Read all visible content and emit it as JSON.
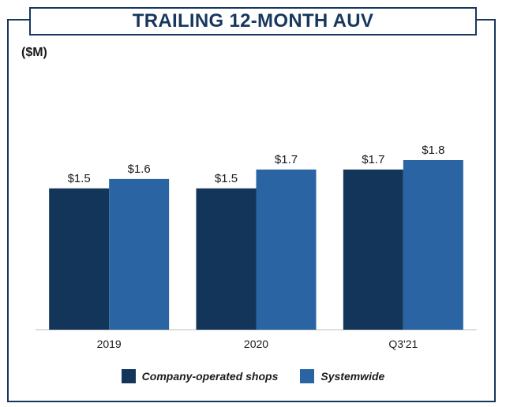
{
  "chart_data": {
    "type": "bar",
    "title": "TRAILING 12-MONTH AUV",
    "unit_label": "($M)",
    "categories": [
      "2019",
      "2020",
      "Q3'21"
    ],
    "series": [
      {
        "name": "Company-operated shops",
        "color": "#14355a",
        "values": [
          1.5,
          1.5,
          1.7
        ],
        "labels": [
          "$1.5",
          "$1.5",
          "$1.7"
        ]
      },
      {
        "name": "Systemwide",
        "color": "#2a64a3",
        "values": [
          1.6,
          1.7,
          1.8
        ],
        "labels": [
          "$1.6",
          "$1.7",
          "$1.8"
        ]
      }
    ],
    "ylim": [
      0,
      1.8
    ],
    "grid": false,
    "legend_position": "bottom"
  }
}
